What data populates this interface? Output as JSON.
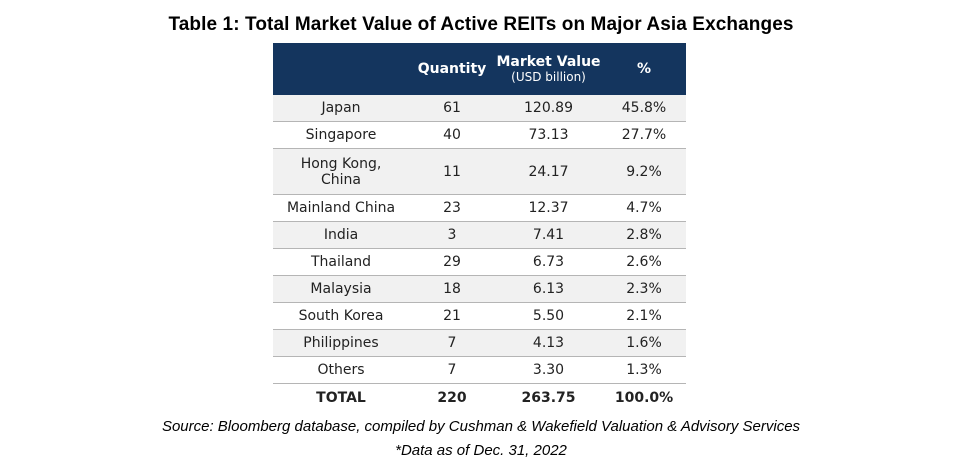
{
  "title": "Table 1: Total Market Value of Active REITs on Major Asia Exchanges",
  "table": {
    "headers": {
      "country": "",
      "quantity": "Quantity",
      "market_value": "Market Value",
      "market_value_unit": "(USD billion)",
      "percent": "%"
    },
    "rows": [
      {
        "country": "Japan",
        "quantity": "61",
        "market_value": "120.89",
        "percent": "45.8%"
      },
      {
        "country": "Singapore",
        "quantity": "40",
        "market_value": "73.13",
        "percent": "27.7%"
      },
      {
        "country": "Hong Kong, China",
        "quantity": "11",
        "market_value": "24.17",
        "percent": "9.2%"
      },
      {
        "country": "Mainland China",
        "quantity": "23",
        "market_value": "12.37",
        "percent": "4.7%"
      },
      {
        "country": "India",
        "quantity": "3",
        "market_value": "7.41",
        "percent": "2.8%"
      },
      {
        "country": "Thailand",
        "quantity": "29",
        "market_value": "6.73",
        "percent": "2.6%"
      },
      {
        "country": "Malaysia",
        "quantity": "18",
        "market_value": "6.13",
        "percent": "2.3%"
      },
      {
        "country": "South Korea",
        "quantity": "21",
        "market_value": "5.50",
        "percent": "2.1%"
      },
      {
        "country": "Philippines",
        "quantity": "7",
        "market_value": "4.13",
        "percent": "1.6%"
      },
      {
        "country": "Others",
        "quantity": "7",
        "market_value": "3.30",
        "percent": "1.3%"
      }
    ],
    "total": {
      "country": "TOTAL",
      "quantity": "220",
      "market_value": "263.75",
      "percent": "100.0%"
    }
  },
  "source": "Source: Bloomberg database, compiled by Cushman & Wakefield Valuation & Advisory Services",
  "note": "*Data as of Dec. 31, 2022",
  "colors": {
    "header_bg": "#14355e",
    "header_text": "#ffffff",
    "row_alt_bg": "#f1f1f1",
    "row_border": "#b5b5b5"
  }
}
